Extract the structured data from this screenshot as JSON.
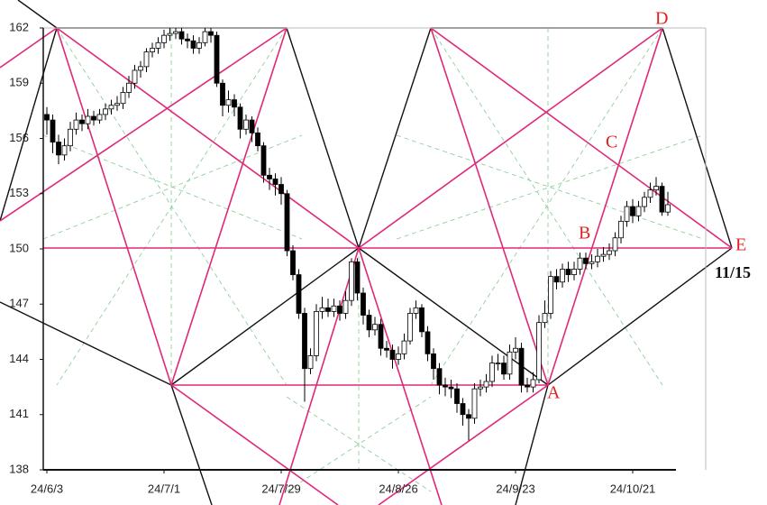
{
  "chart_data": {
    "type": "candlestick",
    "categories": [
      "24/6/3",
      "24/6/4",
      "24/6/5",
      "24/6/6",
      "24/6/7",
      "24/6/10",
      "24/6/11",
      "24/6/12",
      "24/6/13",
      "24/6/14",
      "24/6/17",
      "24/6/18",
      "24/6/19",
      "24/6/20",
      "24/6/21",
      "24/6/24",
      "24/6/25",
      "24/6/26",
      "24/6/27",
      "24/6/28",
      "24/7/1",
      "24/7/2",
      "24/7/3",
      "24/7/4",
      "24/7/5",
      "24/7/8",
      "24/7/9",
      "24/7/10",
      "24/7/11",
      "24/7/12",
      "24/7/15",
      "24/7/16",
      "24/7/17",
      "24/7/18",
      "24/7/19",
      "24/7/22",
      "24/7/23",
      "24/7/24",
      "24/7/25",
      "24/7/26",
      "24/7/29",
      "24/7/30",
      "24/7/31",
      "24/8/1",
      "24/8/2",
      "24/8/5",
      "24/8/6",
      "24/8/7",
      "24/8/8",
      "24/8/9",
      "24/8/12",
      "24/8/13",
      "24/8/14",
      "24/8/15",
      "24/8/16",
      "24/8/19",
      "24/8/20",
      "24/8/21",
      "24/8/22",
      "24/8/23",
      "24/8/26",
      "24/8/27",
      "24/8/28",
      "24/8/29",
      "24/8/30",
      "24/9/2",
      "24/9/3",
      "24/9/4",
      "24/9/5",
      "24/9/6",
      "24/9/9",
      "24/9/10",
      "24/9/11",
      "24/9/12",
      "24/9/13",
      "24/9/16",
      "24/9/17",
      "24/9/18",
      "24/9/19",
      "24/9/20",
      "24/9/23",
      "24/9/24",
      "24/9/25",
      "24/9/26",
      "24/9/27",
      "24/9/30",
      "24/10/1",
      "24/10/2",
      "24/10/3",
      "24/10/4",
      "24/10/7",
      "24/10/8",
      "24/10/9",
      "24/10/10",
      "24/10/11",
      "24/10/14",
      "24/10/15",
      "24/10/16",
      "24/10/17",
      "24/10/18",
      "24/10/21",
      "24/10/22",
      "24/10/23",
      "24/10/24",
      "24/10/25",
      "24/10/28",
      "24/10/29"
    ],
    "open": [
      157.3,
      157.0,
      155.8,
      155.1,
      155.6,
      156.5,
      157.0,
      156.8,
      157.2,
      157.0,
      157.3,
      157.6,
      157.8,
      157.9,
      158.5,
      159.0,
      159.7,
      159.9,
      160.7,
      160.9,
      161.2,
      161.6,
      161.7,
      161.8,
      161.4,
      161.3,
      160.9,
      161.2,
      161.8,
      161.6,
      159.0,
      157.8,
      158.1,
      157.7,
      156.5,
      157.0,
      156.3,
      155.6,
      154.0,
      153.8,
      153.5,
      153.0,
      149.9,
      148.6,
      146.5,
      143.5,
      144.2,
      146.6,
      146.8,
      146.6,
      146.9,
      146.5,
      147.2,
      149.3,
      147.6,
      146.4,
      145.6,
      145.9,
      144.6,
      144.5,
      144.0,
      144.3,
      145.0,
      146.5,
      146.8,
      145.5,
      144.3,
      143.5,
      142.6,
      142.5,
      142.4,
      141.6,
      141.0,
      140.8,
      142.4,
      142.5,
      142.8,
      143.8,
      143.8,
      143.2,
      144.4,
      144.6,
      142.6,
      142.5,
      142.9,
      146.0,
      146.5,
      148.5,
      148.2,
      148.9,
      148.6,
      148.9,
      149.5,
      149.2,
      149.3,
      149.6,
      149.7,
      149.9,
      150.6,
      151.5,
      152.3,
      151.8,
      152.3,
      152.8,
      153.2,
      153.4,
      152.0
    ],
    "high": [
      157.7,
      157.3,
      156.2,
      156.0,
      156.9,
      157.4,
      157.3,
      157.6,
      157.5,
      157.6,
      157.9,
      158.1,
      158.3,
      158.8,
      159.4,
      160.0,
      160.2,
      160.9,
      161.2,
      161.5,
      161.9,
      162.0,
      162.0,
      162.0,
      161.7,
      161.6,
      161.5,
      162.0,
      162.0,
      161.8,
      159.2,
      158.6,
      158.4,
      157.9,
      157.3,
      157.2,
      156.6,
      155.8,
      154.4,
      154.1,
      153.9,
      153.2,
      150.2,
      148.9,
      146.8,
      144.6,
      147.0,
      147.4,
      147.3,
      147.3,
      147.2,
      147.7,
      149.5,
      149.5,
      147.9,
      146.7,
      146.3,
      146.2,
      145.0,
      144.8,
      144.7,
      145.4,
      146.8,
      147.2,
      147.0,
      145.8,
      144.6,
      143.8,
      143.0,
      142.9,
      142.7,
      141.9,
      141.3,
      142.7,
      142.9,
      143.2,
      144.2,
      144.3,
      144.2,
      144.8,
      145.2,
      144.9,
      143.0,
      143.3,
      146.4,
      147.2,
      148.8,
      148.9,
      149.2,
      149.3,
      149.3,
      149.8,
      149.8,
      149.7,
      150.0,
      150.1,
      150.3,
      150.9,
      151.8,
      152.6,
      152.7,
      152.6,
      153.1,
      153.6,
      153.9,
      153.6,
      153.1
    ],
    "low": [
      156.2,
      155.2,
      154.6,
      154.8,
      155.3,
      156.2,
      156.4,
      156.5,
      156.7,
      156.8,
      157.0,
      157.3,
      157.5,
      157.6,
      158.2,
      158.7,
      159.3,
      159.6,
      160.4,
      160.6,
      160.9,
      161.3,
      161.4,
      161.1,
      160.9,
      160.6,
      160.6,
      161.0,
      161.2,
      158.8,
      157.2,
      157.4,
      157.2,
      156.0,
      156.2,
      155.8,
      155.3,
      153.6,
      153.2,
      152.9,
      152.4,
      149.6,
      148.3,
      146.2,
      141.7,
      143.2,
      143.9,
      146.2,
      146.3,
      146.3,
      146.1,
      146.2,
      146.9,
      147.2,
      145.9,
      145.2,
      145.3,
      144.2,
      144.1,
      143.5,
      143.7,
      144.0,
      144.8,
      146.2,
      145.2,
      143.9,
      142.9,
      142.1,
      142.0,
      141.9,
      141.1,
      140.4,
      139.6,
      140.5,
      142.0,
      142.2,
      142.5,
      143.4,
      142.9,
      142.9,
      144.0,
      142.2,
      142.2,
      142.2,
      142.7,
      145.7,
      146.2,
      147.8,
      147.9,
      148.2,
      148.3,
      148.6,
      148.9,
      148.9,
      149.0,
      149.3,
      149.4,
      149.6,
      150.3,
      151.2,
      151.4,
      151.5,
      152.0,
      152.5,
      152.9,
      151.8,
      151.8
    ],
    "close": [
      157.0,
      155.8,
      155.1,
      155.6,
      156.5,
      157.0,
      156.8,
      157.2,
      157.0,
      157.3,
      157.6,
      157.8,
      157.9,
      158.5,
      159.0,
      159.7,
      159.9,
      160.7,
      160.9,
      161.2,
      161.6,
      161.7,
      161.8,
      161.4,
      161.3,
      160.9,
      161.2,
      161.8,
      161.6,
      159.0,
      157.8,
      158.1,
      157.7,
      156.5,
      157.0,
      156.3,
      155.6,
      154.0,
      153.8,
      153.5,
      153.0,
      149.9,
      148.6,
      146.5,
      143.5,
      144.2,
      146.6,
      146.8,
      146.6,
      146.9,
      146.5,
      147.2,
      149.3,
      147.6,
      146.4,
      145.6,
      145.9,
      144.6,
      144.5,
      144.0,
      144.3,
      145.0,
      146.5,
      146.8,
      145.5,
      144.3,
      143.5,
      142.6,
      142.5,
      142.4,
      141.6,
      141.0,
      140.8,
      142.4,
      142.5,
      142.8,
      143.8,
      143.8,
      143.2,
      144.4,
      144.6,
      142.6,
      142.5,
      142.9,
      146.0,
      146.5,
      148.5,
      148.2,
      148.9,
      148.6,
      148.9,
      149.5,
      149.2,
      149.3,
      149.6,
      149.7,
      149.9,
      150.6,
      151.5,
      152.3,
      151.8,
      152.3,
      152.8,
      153.2,
      153.4,
      152.0,
      152.4
    ],
    "up_color": "#ffffff",
    "down_color": "#000000",
    "edge_color": "#000000",
    "ylim": [
      138,
      162
    ],
    "yticks": [
      138,
      141,
      144,
      147,
      150,
      153,
      156,
      159,
      162
    ],
    "xticks": [
      "24/6/3",
      "24/7/1",
      "24/7/29",
      "24/8/26",
      "24/9/23",
      "24/10/21"
    ],
    "annotations": [
      "A",
      "B",
      "C",
      "D",
      "E",
      "11/15"
    ]
  }
}
